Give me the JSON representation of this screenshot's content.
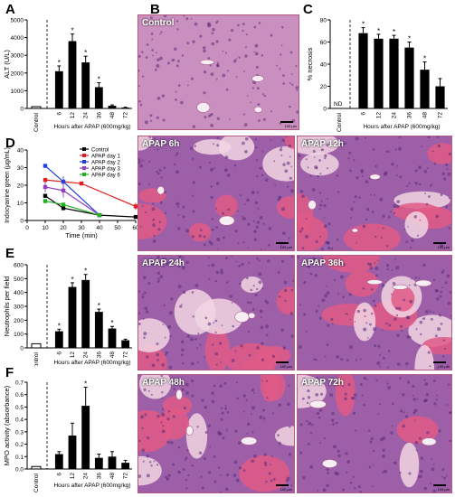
{
  "colors": {
    "tissue_pink": "#e8a3c2",
    "tissue_purple": "#9c5fa8",
    "tissue_red": "#e05a86",
    "tissue_pale": "#f2d6e3",
    "bar_black": "#000000",
    "control_black": "#000000",
    "day1_red": "#e02020",
    "day2_blue": "#2040e0",
    "day3_purple": "#9040c0",
    "day6_green": "#20b020"
  },
  "panels": {
    "A": "A",
    "B": "B",
    "C": "C",
    "D": "D",
    "E": "E",
    "F": "F"
  },
  "micrographs": [
    {
      "id": "control",
      "label": "Control",
      "scale": "100 µm"
    },
    {
      "id": "apap6",
      "label": "APAP 6h",
      "scale": "100 µm"
    },
    {
      "id": "apap12",
      "label": "APAP 12h",
      "scale": "100 µm"
    },
    {
      "id": "apap24",
      "label": "APAP 24h",
      "scale": "100 µm"
    },
    {
      "id": "apap36",
      "label": "APAP 36h",
      "scale": "100 µm"
    },
    {
      "id": "apap48",
      "label": "APAP 48h",
      "scale": "100 µm"
    },
    {
      "id": "apap72",
      "label": "APAP 72h",
      "scale": "100 µm"
    }
  ],
  "chart_data": [
    {
      "panel": "A",
      "type": "bar",
      "ylabel": "ALT (U/L)",
      "xlabel": "Hours after APAP (600mg/kg)",
      "control_label": "Control",
      "categories": [
        "6",
        "12",
        "24",
        "36",
        "48",
        "72"
      ],
      "control_value": 30,
      "values": [
        2100,
        3800,
        2600,
        1200,
        150,
        50
      ],
      "errors": [
        300,
        400,
        350,
        250,
        50,
        20
      ],
      "significant": [
        true,
        true,
        true,
        true,
        false,
        false
      ],
      "ylim": [
        0,
        5000
      ],
      "yticks": [
        "0",
        "1000",
        "2000",
        "3000",
        "4000",
        "5000"
      ]
    },
    {
      "panel": "C",
      "type": "bar",
      "ylabel": "% necrosis",
      "xlabel": "Hours after APAP (600mg/kg)",
      "control_label": "Control",
      "control_text": "ND",
      "categories": [
        "6",
        "12",
        "24",
        "36",
        "48",
        "72"
      ],
      "values": [
        68,
        63,
        63,
        55,
        35,
        20
      ],
      "errors": [
        5,
        4,
        3,
        5,
        7,
        7
      ],
      "significant": [
        true,
        true,
        true,
        true,
        true,
        false
      ],
      "ylim": [
        0,
        80
      ],
      "yticks": [
        "0",
        "20",
        "40",
        "60",
        "80"
      ]
    },
    {
      "panel": "D",
      "type": "line",
      "ylabel": "Indocyanine green (µg/mL)",
      "xlabel": "Time (min)",
      "xlim": [
        0,
        60
      ],
      "ylim": [
        0,
        40
      ],
      "xticks": [
        "0",
        "10",
        "20",
        "30",
        "40",
        "50",
        "60"
      ],
      "yticks": [
        "0",
        "10",
        "20",
        "30",
        "40"
      ],
      "series": [
        {
          "name": "Control",
          "color": "#000000",
          "x": [
            10,
            20,
            40,
            60
          ],
          "y": [
            14,
            7,
            3,
            2
          ],
          "err": [
            1,
            1,
            0.5,
            0.3
          ]
        },
        {
          "name": "APAP day 1",
          "color": "#e02020",
          "x": [
            10,
            30,
            60
          ],
          "y": [
            23,
            21,
            8
          ],
          "err": [
            1,
            1,
            2
          ]
        },
        {
          "name": "APAP day 2",
          "color": "#2040e0",
          "x": [
            10,
            20,
            40
          ],
          "y": [
            31,
            22,
            3
          ],
          "err": [
            1,
            3,
            1
          ]
        },
        {
          "name": "APAP day 3",
          "color": "#9040c0",
          "x": [
            10,
            20,
            40
          ],
          "y": [
            19,
            17,
            3
          ],
          "err": [
            3,
            4,
            1
          ]
        },
        {
          "name": "APAP day 6",
          "color": "#20b020",
          "x": [
            10,
            20,
            40
          ],
          "y": [
            11,
            9,
            3
          ],
          "err": [
            1,
            1,
            0.5
          ]
        }
      ]
    },
    {
      "panel": "E",
      "type": "bar",
      "ylabel": "Neutrophils per field",
      "xlabel": "Hours after APAP (600mg/kg)",
      "control_label": "Control",
      "categories": [
        "6",
        "12",
        "24",
        "36",
        "48",
        "72"
      ],
      "control_value": 30,
      "values": [
        120,
        440,
        490,
        260,
        140,
        55
      ],
      "errors": [
        15,
        30,
        40,
        20,
        15,
        8
      ],
      "significant": [
        true,
        true,
        true,
        true,
        true,
        false
      ],
      "ylim": [
        0,
        600
      ],
      "yticks": [
        "0",
        "100",
        "200",
        "300",
        "400",
        "500",
        "600"
      ]
    },
    {
      "panel": "F",
      "type": "bar",
      "ylabel": "MPO activity (absorbance)",
      "xlabel": "Hours after APAP (600mg/kg)",
      "control_label": "Control",
      "categories": [
        "6",
        "12",
        "24",
        "36",
        "48",
        "72"
      ],
      "control_value": 0.02,
      "values": [
        0.12,
        0.27,
        0.51,
        0.09,
        0.1,
        0.05
      ],
      "errors": [
        0.02,
        0.1,
        0.15,
        0.03,
        0.04,
        0.02
      ],
      "significant": [
        false,
        false,
        true,
        false,
        false,
        false
      ],
      "ylim": [
        0,
        0.7
      ],
      "yticks": [
        "0.0",
        "0.1",
        "0.2",
        "0.3",
        "0.4",
        "0.5",
        "0.6",
        "0.7"
      ]
    }
  ]
}
